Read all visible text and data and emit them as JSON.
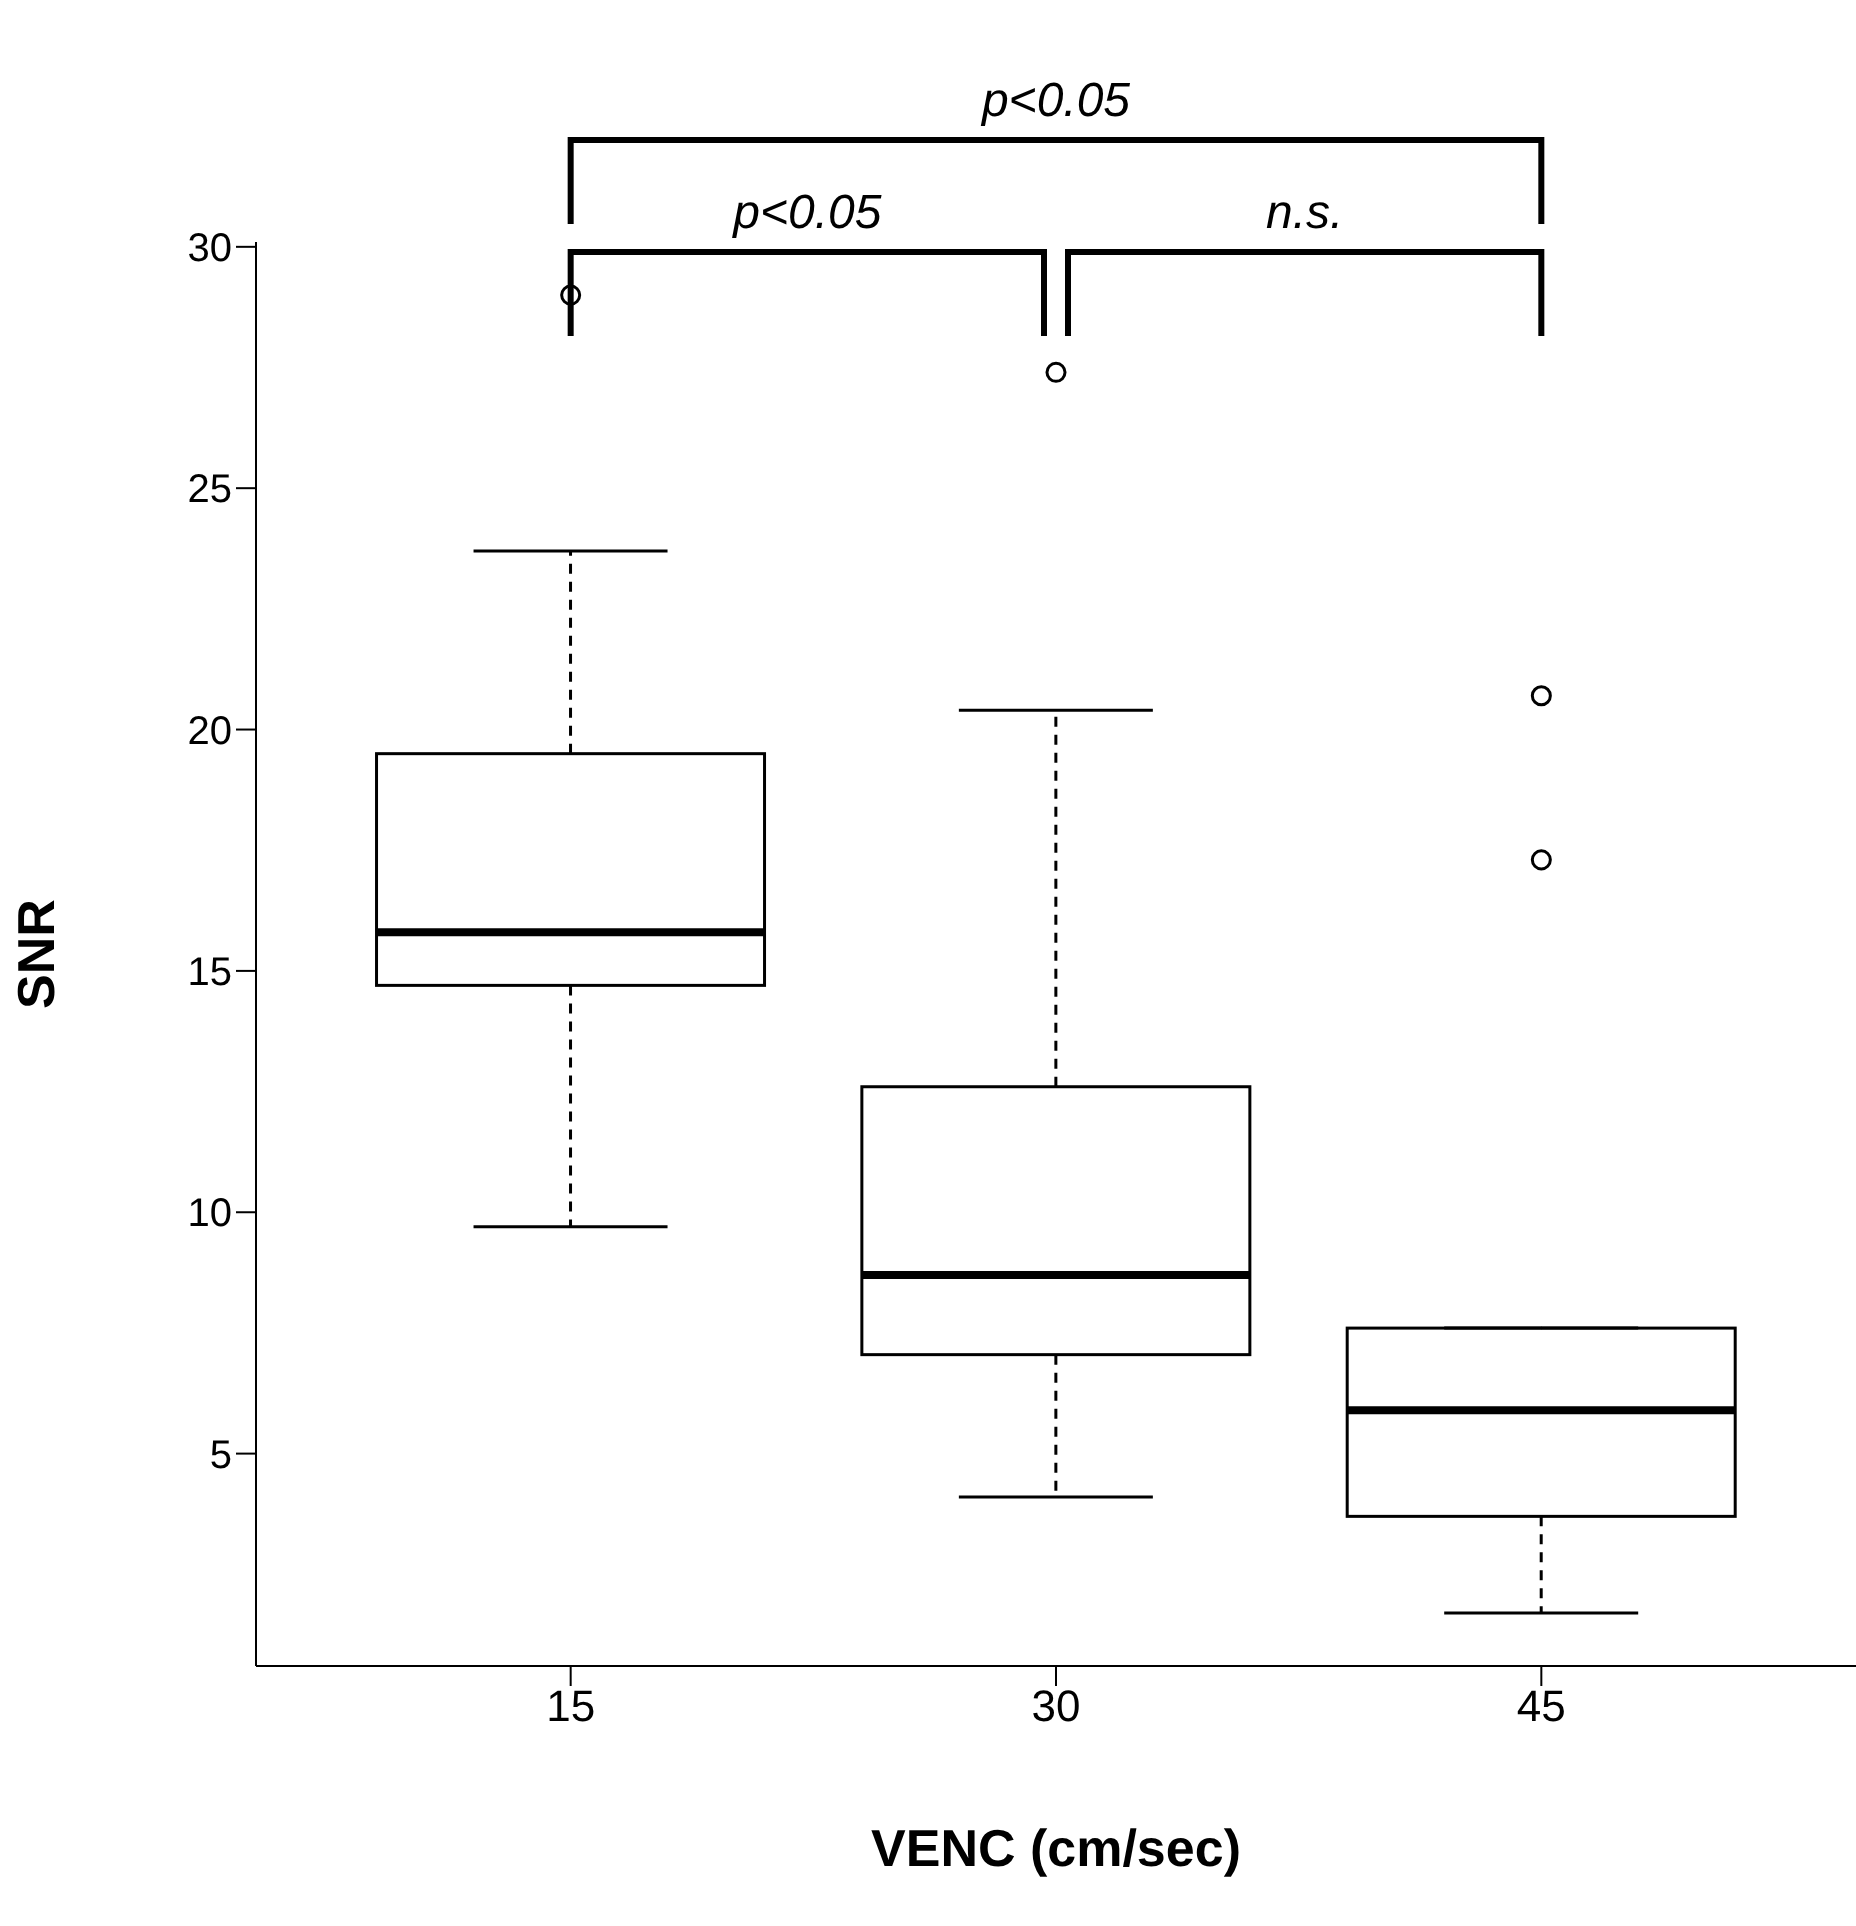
{
  "chart_data": {
    "type": "box",
    "xlabel": "VENC (cm/sec)",
    "ylabel": "SNR",
    "categories": [
      "15",
      "30",
      "45"
    ],
    "boxes": [
      {
        "low": 9.7,
        "q1": 14.7,
        "median": 15.8,
        "q3": 19.5,
        "high": 23.7,
        "outliers": [
          29
        ]
      },
      {
        "low": 4.1,
        "q1": 7.05,
        "median": 8.7,
        "q3": 12.6,
        "high": 20.4,
        "outliers": [
          27.4
        ]
      },
      {
        "low": 1.7,
        "q1": 3.7,
        "median": 5.9,
        "q3": 7.6,
        "high": 7.6,
        "outliers": [
          20.7,
          17.3
        ]
      }
    ],
    "color": "#000000",
    "ylim": [
      0.6,
      30.1
    ],
    "yticks": [
      5,
      10,
      15,
      20,
      25,
      30
    ],
    "grid": false,
    "marker": "circle",
    "annotations": [
      "p<0.05",
      "p<0.05",
      "n.s."
    ]
  }
}
